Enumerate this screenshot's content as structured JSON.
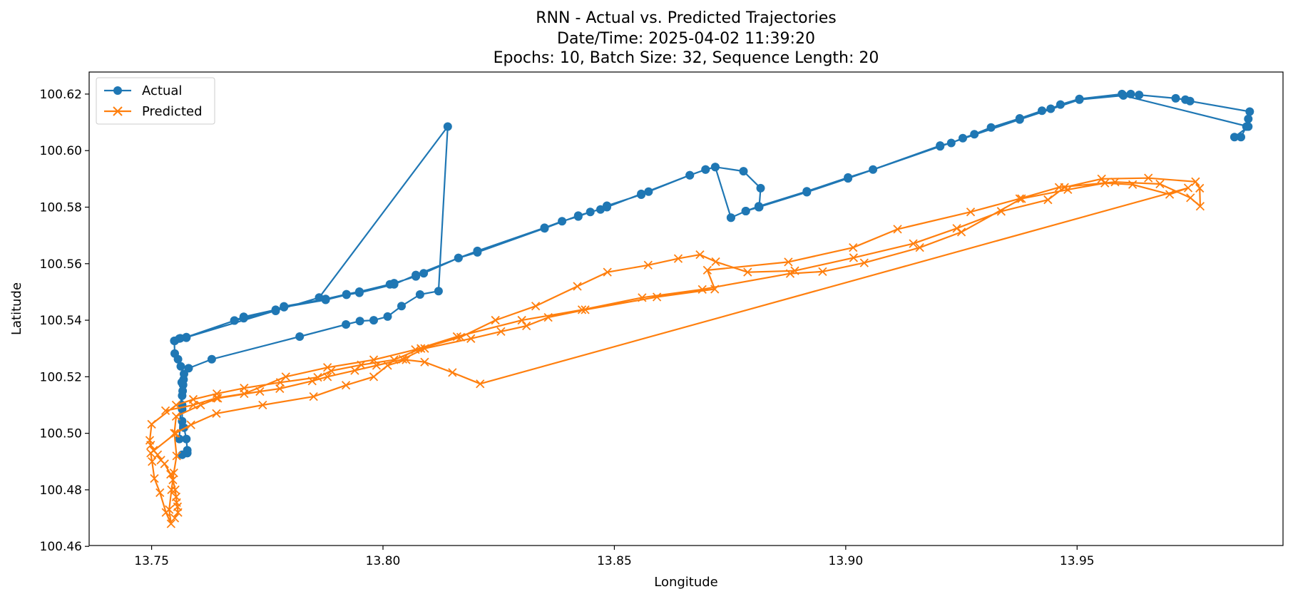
{
  "chart_data": {
    "type": "line",
    "title": "RNN - Actual vs. Predicted Trajectories",
    "subtitle_lines": [
      "Date/Time: 2025-04-02 11:39:20",
      "Epochs: 10, Batch Size: 32, Sequence Length: 20"
    ],
    "xlabel": "Longitude",
    "ylabel": "Latitude",
    "xlim": [
      13.7365,
      13.9945
    ],
    "ylim": [
      100.4603,
      100.6278
    ],
    "x_ticks": [
      13.75,
      13.8,
      13.85,
      13.9,
      13.95
    ],
    "x_tick_labels": [
      "13.75",
      "13.80",
      "13.85",
      "13.90",
      "13.95"
    ],
    "y_ticks": [
      100.46,
      100.48,
      100.5,
      100.52,
      100.54,
      100.56,
      100.58,
      100.6,
      100.62
    ],
    "y_tick_labels": [
      "100.46",
      "100.48",
      "100.50",
      "100.52",
      "100.54",
      "100.56",
      "100.58",
      "100.60",
      "100.62"
    ],
    "grid": false,
    "legend": "top-left",
    "series": [
      {
        "name": "Actual",
        "color": "#1f77b4",
        "marker": "circle",
        "x": [
          13.7566,
          13.7577,
          13.7577,
          13.7575,
          13.757,
          13.7566,
          13.7566,
          13.7566,
          13.7566,
          13.7567,
          13.7568,
          13.7569,
          13.757,
          13.7563,
          13.7557,
          13.755,
          13.7549,
          13.7562,
          13.7575,
          13.7679,
          13.7699,
          13.7768,
          13.7786,
          13.7876,
          13.7921,
          13.7949,
          13.8015,
          13.8024,
          13.8071,
          13.8088,
          13.8163,
          13.8204,
          13.8349,
          13.8387,
          13.8422,
          13.8448,
          13.847,
          13.8484,
          13.8558,
          13.8574,
          13.8663,
          13.8697,
          13.8718,
          13.8779,
          13.8816,
          13.8813,
          13.8784,
          13.8752,
          13.8784,
          13.8812,
          13.8916,
          13.9005,
          13.9059,
          13.9204,
          13.9228,
          13.9253,
          13.9278,
          13.9314,
          13.9376,
          13.9424,
          13.9443,
          13.9464,
          13.9505,
          13.9597,
          13.9616,
          13.9634,
          13.9713,
          13.9734,
          13.9744,
          13.9873,
          13.987,
          13.9866,
          13.9854,
          13.984,
          13.987,
          13.96,
          13.9505,
          13.9376,
          13.9204,
          13.9005,
          13.8916,
          13.8812,
          13.8784,
          13.8752,
          13.8718,
          13.8697,
          13.8663,
          13.8558,
          13.8484,
          13.8422,
          13.8349,
          13.8204,
          13.8163,
          13.8071,
          13.8024,
          13.7949,
          13.7921,
          13.7876,
          13.7786,
          13.7768,
          13.7699,
          13.7679,
          13.7575,
          13.756,
          13.755,
          13.7862,
          13.814,
          13.812,
          13.808,
          13.804,
          13.801,
          13.798,
          13.795,
          13.792,
          13.782,
          13.763,
          13.758,
          13.7565,
          13.756
        ],
        "y": [
          100.4924,
          100.493,
          100.494,
          100.498,
          100.502,
          100.5043,
          100.5085,
          100.51,
          100.5133,
          100.515,
          100.5171,
          100.519,
          100.521,
          100.5237,
          100.5262,
          100.5282,
          100.5327,
          100.5336,
          100.5338,
          100.5399,
          100.5412,
          100.5437,
          100.5449,
          100.5475,
          100.5492,
          100.5501,
          100.5527,
          100.5531,
          100.5555,
          100.5566,
          100.562,
          100.5645,
          100.5727,
          100.575,
          100.5767,
          100.5783,
          100.5792,
          100.5805,
          100.5844,
          100.5855,
          100.5913,
          100.5933,
          100.5942,
          100.5927,
          100.5867,
          100.58,
          100.5786,
          100.5763,
          100.5786,
          100.5803,
          100.5856,
          100.5905,
          100.5933,
          100.6018,
          100.6027,
          100.6044,
          100.6058,
          100.6082,
          100.6114,
          100.6141,
          100.6148,
          100.6163,
          100.6183,
          100.62,
          100.62,
          100.6197,
          100.6185,
          100.618,
          100.6175,
          100.6138,
          100.6112,
          100.6085,
          100.6048,
          100.6048,
          100.6085,
          100.6195,
          100.618,
          100.611,
          100.6015,
          100.5902,
          100.5853,
          100.58,
          100.5786,
          100.5763,
          100.5942,
          100.5933,
          100.5913,
          100.5847,
          100.58,
          100.577,
          100.5725,
          100.564,
          100.562,
          100.556,
          100.5527,
          100.5497,
          100.549,
          100.5472,
          100.5446,
          100.5433,
          100.5407,
          100.5399,
          100.534,
          100.5335,
          100.5327,
          100.548,
          100.6085,
          100.5503,
          100.5491,
          100.545,
          100.5413,
          100.54,
          100.5397,
          100.5385,
          100.5342,
          100.5262,
          100.523,
          100.518,
          100.498
        ]
      },
      {
        "name": "Predicted",
        "color": "#ff7f0e",
        "marker": "x",
        "x": [
          13.755,
          13.7557,
          13.7556,
          13.7554,
          13.7553,
          13.7551,
          13.7546,
          13.7541,
          13.7528,
          13.752,
          13.7513,
          13.7504,
          13.7498,
          13.7496,
          13.75,
          13.7553,
          13.759,
          13.7641,
          13.77,
          13.7778,
          13.7859,
          13.7888,
          13.7953,
          13.8024,
          13.8082,
          13.8168,
          13.8243,
          13.833,
          13.842,
          13.8485,
          13.8573,
          13.8638,
          13.8685,
          13.8719,
          13.8788,
          13.889,
          13.9017,
          13.9146,
          13.924,
          13.9336,
          13.9437,
          13.9473,
          13.9553,
          13.9654,
          13.9756,
          13.9765,
          13.9766,
          13.9745,
          13.9679,
          13.9582,
          13.9461,
          13.9376,
          13.927,
          13.9112,
          13.9016,
          13.8876,
          13.8701,
          13.8717,
          13.8592,
          13.8437,
          13.8357,
          13.831,
          13.8255,
          13.819,
          13.809,
          13.8043,
          13.7986,
          13.7939,
          13.788,
          13.7847,
          13.7777,
          13.7734,
          13.7643,
          13.7606,
          13.7553,
          13.7549,
          13.7554,
          13.7548,
          13.7543,
          13.7538,
          13.7542,
          13.7531,
          13.7518,
          13.7506,
          13.7501,
          13.7498,
          13.7552,
          13.7585,
          13.764,
          13.774,
          13.785,
          13.792,
          13.798,
          13.801,
          13.805,
          13.809,
          13.815,
          13.821,
          13.974,
          13.97,
          13.962,
          13.956,
          13.948,
          13.938,
          13.925,
          13.916,
          13.904,
          13.895,
          13.888,
          13.869,
          13.856,
          13.843,
          13.83,
          13.816,
          13.807,
          13.798,
          13.788,
          13.779,
          13.77,
          13.764,
          13.759,
          13.753
        ],
        "y": [
          100.47,
          100.472,
          100.474,
          100.4755,
          100.4775,
          100.48,
          100.4835,
          100.4855,
          100.4892,
          100.4905,
          100.4924,
          100.494,
          100.4958,
          100.4975,
          100.5032,
          100.51,
          100.512,
          100.514,
          100.516,
          100.518,
          100.5198,
          100.5221,
          100.5242,
          100.526,
          100.53,
          100.534,
          100.54,
          100.545,
          100.552,
          100.557,
          100.5595,
          100.5618,
          100.5632,
          100.5607,
          100.557,
          100.5575,
          100.5621,
          100.5671,
          100.5725,
          100.5785,
          100.5826,
          100.587,
          100.59,
          100.5903,
          100.589,
          100.5867,
          100.5803,
          100.5833,
          100.5882,
          100.5889,
          100.587,
          100.583,
          100.5783,
          100.5722,
          100.5657,
          100.5606,
          100.5577,
          100.551,
          100.5482,
          100.5437,
          100.541,
          100.538,
          100.536,
          100.5335,
          100.53,
          100.5262,
          100.524,
          100.5222,
          100.52,
          100.5185,
          100.5158,
          100.5148,
          100.5124,
          100.51,
          100.506,
          100.5,
          100.492,
          100.486,
          100.48,
          100.473,
          100.468,
          100.472,
          100.479,
          100.484,
          100.49,
          100.493,
          100.5,
          100.503,
          100.507,
          100.51,
          100.513,
          100.517,
          100.52,
          100.524,
          100.526,
          100.5252,
          100.5215,
          100.5175,
          100.5868,
          100.5845,
          100.588,
          100.5885,
          100.5862,
          100.583,
          100.5712,
          100.5657,
          100.5603,
          100.5572,
          100.5565,
          100.5509,
          100.548,
          100.5437,
          100.54,
          100.5342,
          100.5296,
          100.526,
          100.5233,
          100.52,
          100.514,
          100.5125,
          100.51,
          100.508
        ]
      }
    ]
  }
}
